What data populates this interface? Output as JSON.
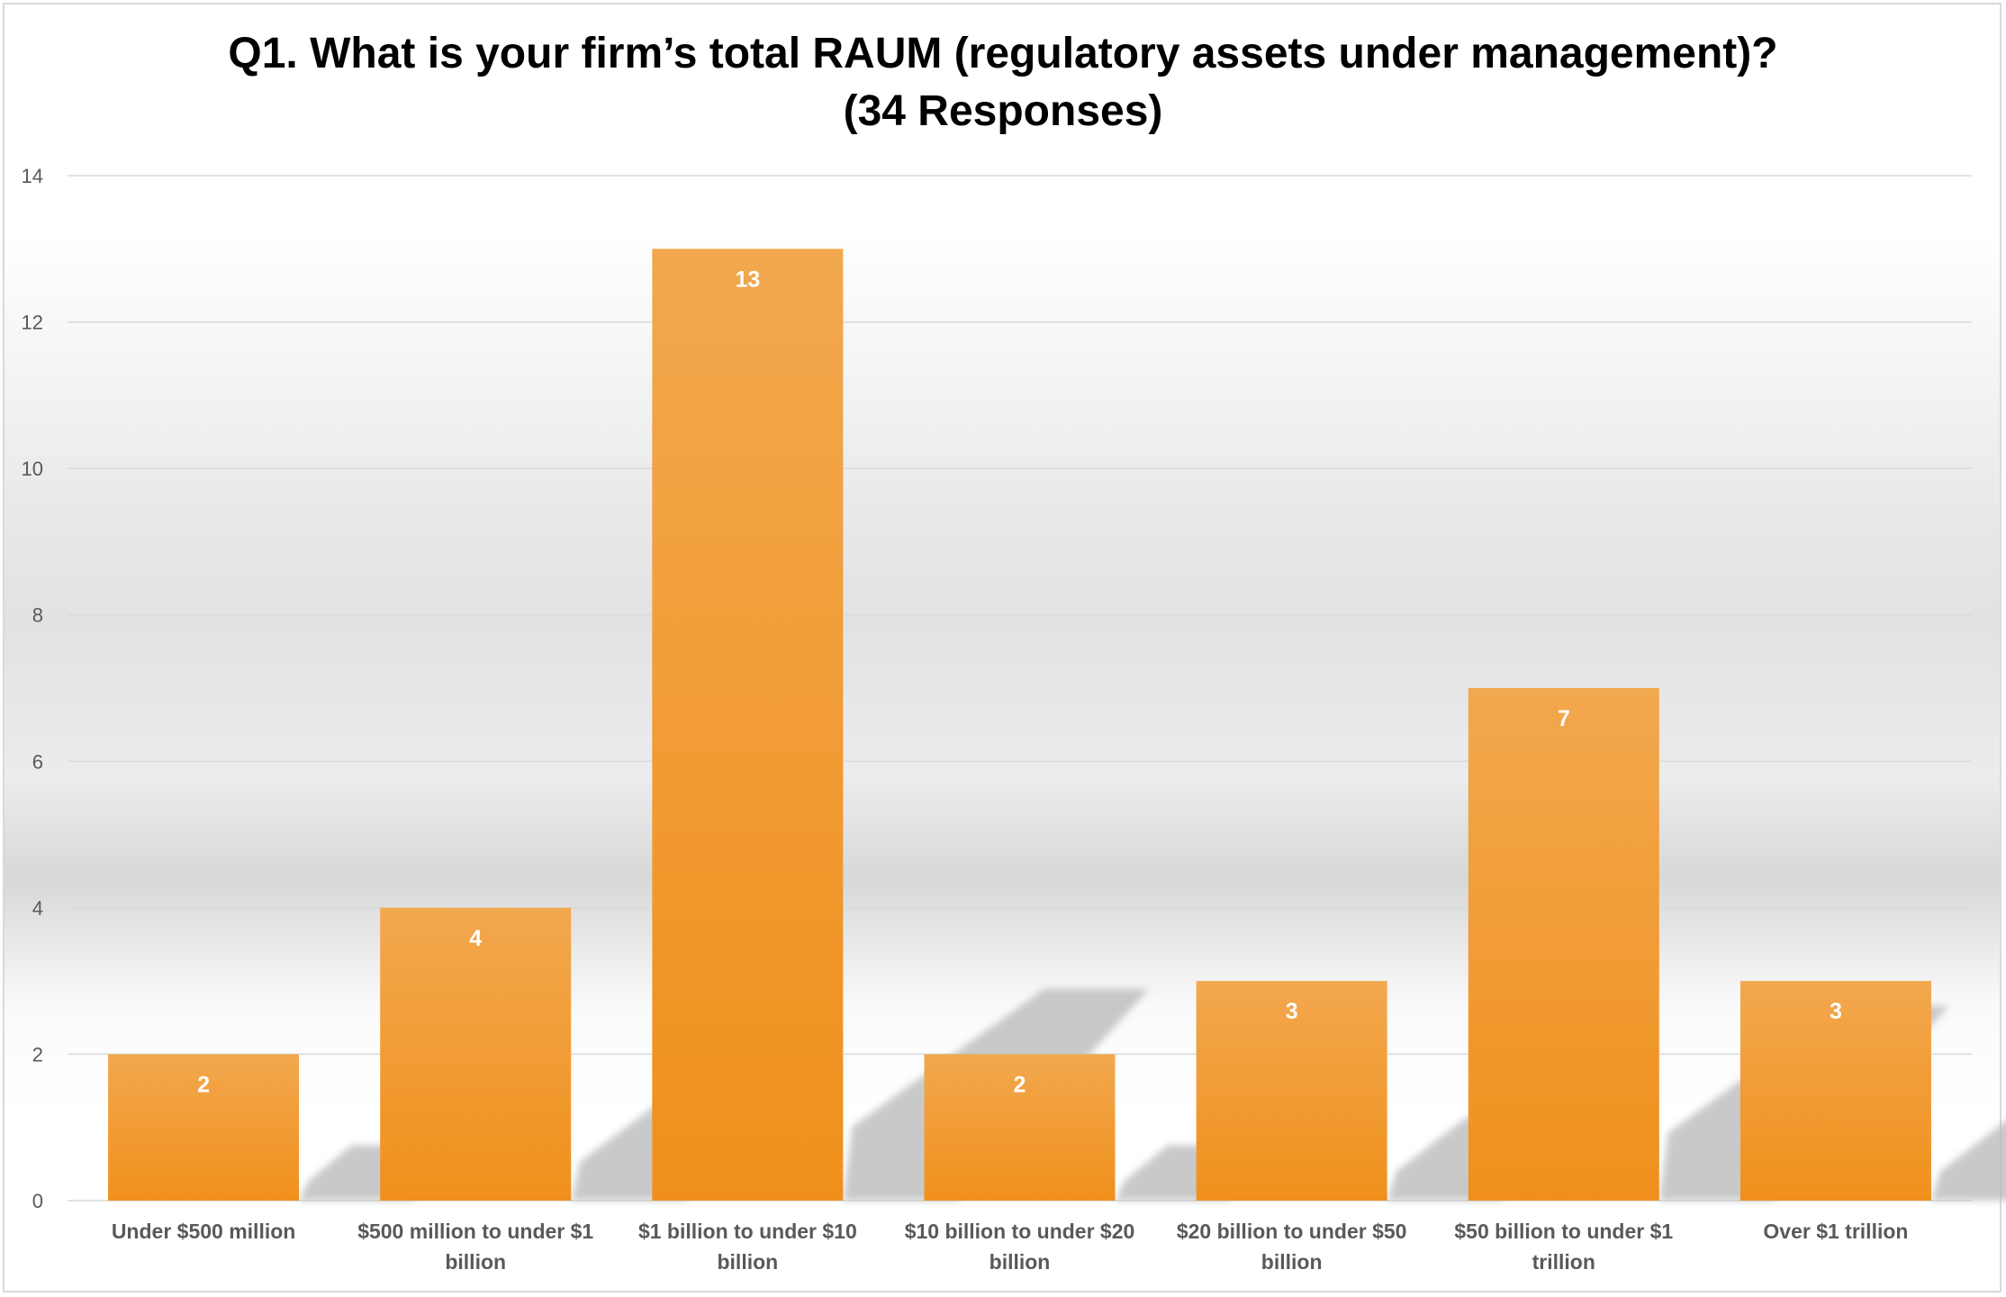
{
  "chart_data": {
    "type": "bar",
    "title": "Q1. What is your firm’s total RAUM (regulatory assets under management)?",
    "subtitle": "(34 Responses)",
    "xlabel": "",
    "ylabel": "",
    "ylim": [
      0,
      14
    ],
    "yticks": [
      0,
      2,
      4,
      6,
      8,
      10,
      12,
      14
    ],
    "grid": true,
    "legend": "none",
    "categories": [
      [
        "Under $500 million"
      ],
      [
        "$500 million to under $1",
        "billion"
      ],
      [
        "$1 billion to under $10",
        "billion"
      ],
      [
        "$10 billion to under $20",
        "billion"
      ],
      [
        "$20 billion to under $50",
        "billion"
      ],
      [
        "$50 billion to under $1",
        "trillion"
      ],
      [
        "Over $1 trillion"
      ]
    ],
    "values": [
      2,
      4,
      13,
      2,
      3,
      7,
      3
    ],
    "colors": {
      "bar_top": "#f2a84e",
      "bar_bottom": "#f0901c",
      "gridline": "#d9d9d9",
      "axis_text": "#595959",
      "data_label": "#ffffff"
    }
  }
}
